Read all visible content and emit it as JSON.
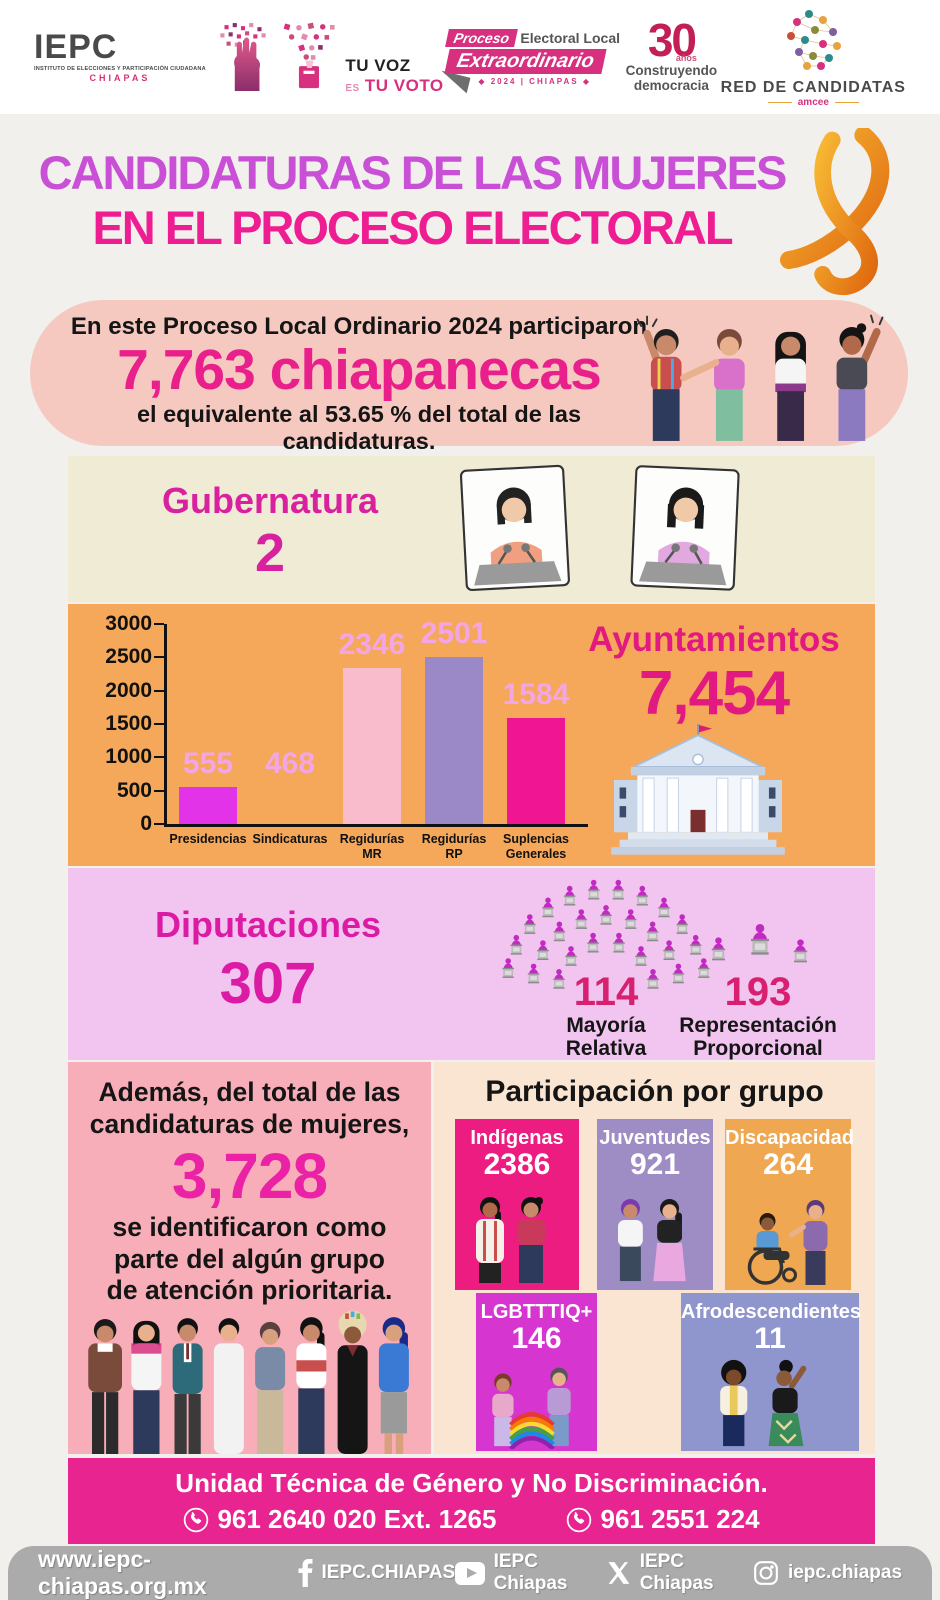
{
  "colors": {
    "page_bg": "#F2F0ED",
    "title_line1": "#C94FD6",
    "title_line2": "#EE1E92",
    "banner_bg": "#F6C9C0",
    "banner_number": "#E9208C",
    "gubernatura_bg": "#EFEBD4",
    "ayuntamientos_bg": "#F5A85A",
    "diputaciones_bg": "#F2C4F0",
    "left_panel_bg": "#F8AEB8",
    "right_panel_bg": "#FAE5D3",
    "footer_pink": "#E82490",
    "bottom_bar_gray": "#ABABAB"
  },
  "header_logos": {
    "iepc": {
      "acronym": "IEPC",
      "subtitle": "INSTITUTO DE ELECCIONES Y PARTICIPACIÓN CIUDADANA",
      "region": "CHIAPAS"
    },
    "tu_voz": {
      "line1": "TU VOZ",
      "es": "ES",
      "line2": "TU VOTO"
    },
    "proceso": {
      "word1": "Proceso",
      "word2": "Electoral Local",
      "word3": "Extraordinario",
      "caption": "◆ 2024 | CHIAPAS ◆"
    },
    "treinta": {
      "number": "30",
      "anios": "años",
      "line1": "Construyendo",
      "line2": "democracia"
    },
    "red": {
      "title": "RED DE CANDIDATAS",
      "subtitle": "amcee"
    }
  },
  "title": {
    "line1": "CANDIDATURAS DE LAS MUJERES",
    "line2": "EN EL PROCESO ELECTORAL"
  },
  "banner": {
    "intro": "En este Proceso Local Ordinario 2024 participaron",
    "number": "7,763 chiapanecas",
    "outro": "el equivalente al 53.65 % del total de las candidaturas."
  },
  "gubernatura": {
    "label": "Gubernatura",
    "value": "2"
  },
  "ayuntamientos": {
    "label": "Ayuntamientos",
    "value": "7,454"
  },
  "chart_data": {
    "type": "bar",
    "title": "Ayuntamientos",
    "total_display": "7,454",
    "categories": [
      "Presidencias",
      "Sindicaturas",
      "Regidurías MR",
      "Regidurías RP",
      "Suplencias Generales"
    ],
    "values": [
      555,
      468,
      2346,
      2501,
      1584
    ],
    "bar_colors": [
      "#E233E8",
      null,
      "#F8BCCC",
      "#9B89C7",
      "#F01693"
    ],
    "value_label_color": "#F2A6E6",
    "ylim": [
      0,
      3000
    ],
    "yticks": [
      0,
      500,
      1000,
      1500,
      2000,
      2500,
      3000
    ],
    "xlabel": "",
    "ylabel": "",
    "grid": false,
    "note": "Sindicaturas bar not drawn in source image; value 468 labeled only"
  },
  "diputaciones": {
    "label": "Diputaciones",
    "value": "307",
    "mr_value": "114",
    "mr_label": "Mayoría\nRelativa",
    "rp_value": "193",
    "rp_label": "Representación\nProporcional"
  },
  "priority": {
    "intro": "Además, del total de las candidaturas de mujeres,",
    "number": "3,728",
    "outro": "se identificaron como parte del algún grupo de atención prioritaria."
  },
  "groups": {
    "title": "Participación por grupo",
    "cards": [
      {
        "label": "Indígenas",
        "value": "2386",
        "color": "#EC1C80"
      },
      {
        "label": "Juventudes",
        "value": "921",
        "color": "#9E8CC5"
      },
      {
        "label": "Discapacidad",
        "value": "264",
        "color": "#F0A751"
      },
      {
        "label": "LGBTTTIQ+",
        "value": "146",
        "color": "#D735CF"
      },
      {
        "label": "Afrodescendientes",
        "value": "11",
        "color": "#8F96CE"
      }
    ]
  },
  "footer": {
    "unit": "Unidad Técnica de Género y No Discriminación.",
    "phone1": "961 2640 020 Ext. 1265",
    "phone2": "961 2551 224"
  },
  "bottombar": {
    "website": "www.iepc-chiapas.org.mx",
    "facebook": "IEPC.CHIAPAS",
    "youtube": "IEPC Chiapas",
    "x": "IEPC Chiapas",
    "instagram": "iepc.chiapas"
  }
}
